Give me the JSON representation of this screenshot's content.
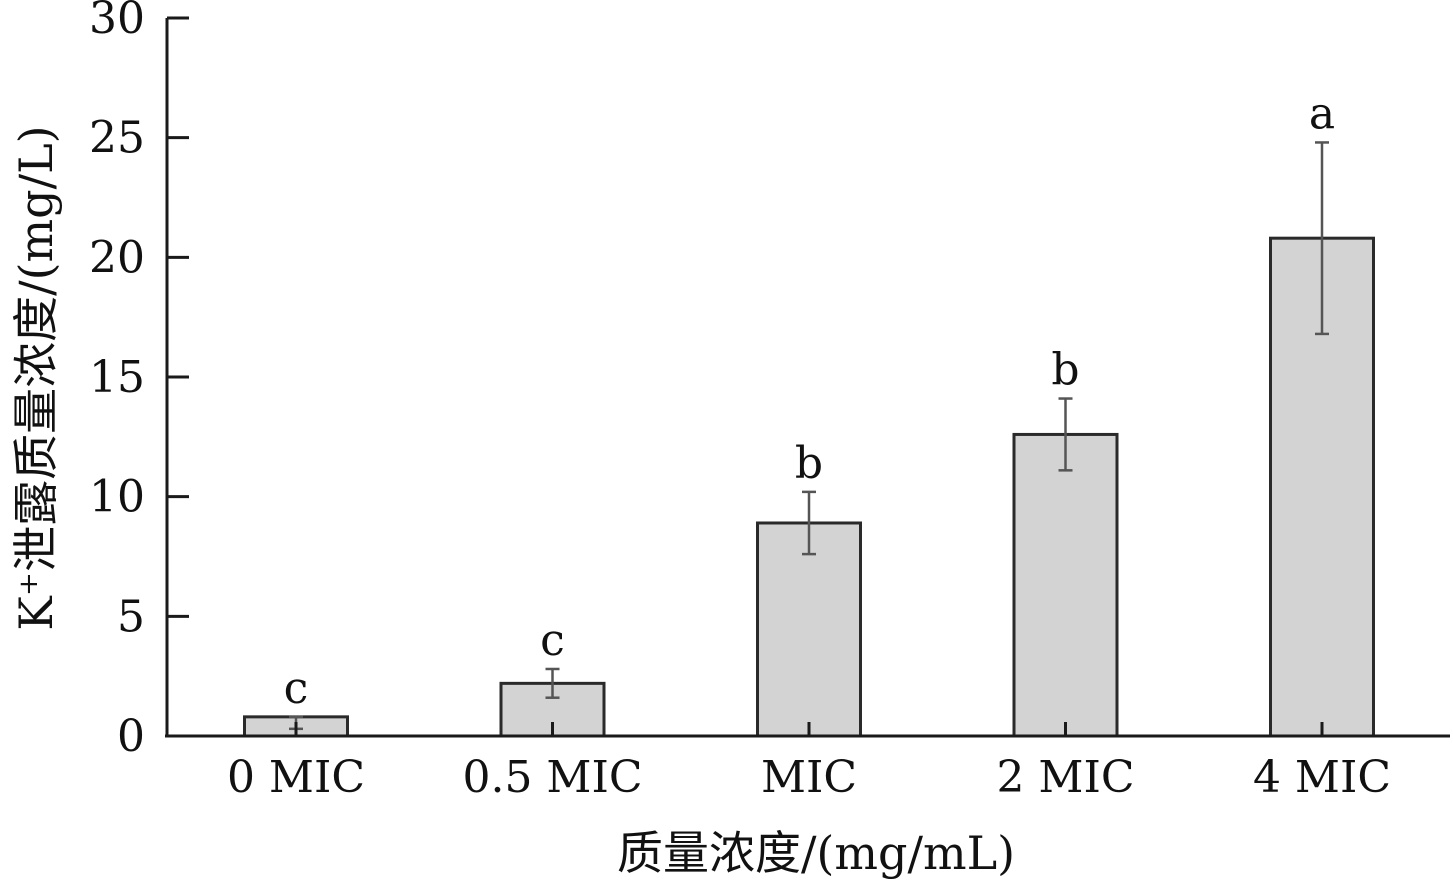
{
  "chart_data": {
    "type": "bar",
    "categories": [
      "0 MIC",
      "0.5 MIC",
      "MIC",
      "2 MIC",
      "4 MIC"
    ],
    "values": [
      0.8,
      2.2,
      8.9,
      12.6,
      20.8
    ],
    "error_low": [
      0.3,
      1.6,
      7.6,
      11.1,
      16.8
    ],
    "error_high": [
      0.8,
      2.8,
      10.2,
      14.1,
      24.8
    ],
    "significance": [
      "c",
      "c",
      "b",
      "b",
      "a"
    ],
    "xlabel": "质量浓度/(mg/mL)",
    "ylabel": "K⁺泄露质量浓度/(mg/L)",
    "ylim": [
      0,
      30
    ],
    "yticks": [
      0,
      5,
      10,
      15,
      20,
      25,
      30
    ],
    "bar_color": "#d3d3d3",
    "grid": false,
    "legend": "none"
  }
}
